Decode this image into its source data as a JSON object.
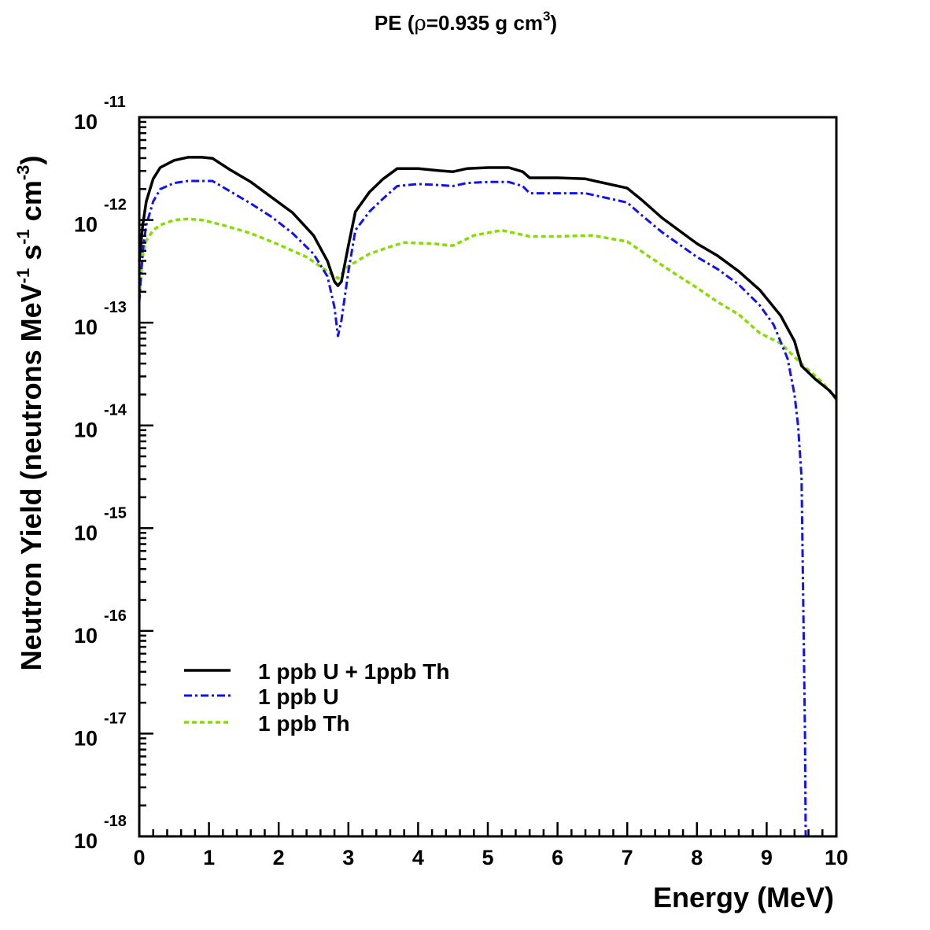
{
  "chart_data": {
    "type": "line",
    "title": {
      "main": "PE  (",
      "rho": "ρ",
      "after_rho": "=0.935 g cm",
      "sup": "3",
      "close": ")"
    },
    "xlabel": "Energy (MeV)",
    "ylabel": {
      "part1": "Neutron Yield (neutrons MeV",
      "sup1": "-1",
      "part2": " s",
      "sup2": "-1",
      "part3": " cm",
      "sup3": "-3",
      "part4": ")"
    },
    "x_scale": "linear",
    "y_scale": "log",
    "xlim": [
      0,
      10
    ],
    "ylim_log10": [
      -18,
      -11
    ],
    "x_ticks": [
      "0",
      "1",
      "2",
      "3",
      "4",
      "5",
      "6",
      "7",
      "8",
      "9",
      "10"
    ],
    "y_ticks": [
      {
        "base": "10",
        "exp": "-18"
      },
      {
        "base": "10",
        "exp": "-17"
      },
      {
        "base": "10",
        "exp": "-16"
      },
      {
        "base": "10",
        "exp": "-15"
      },
      {
        "base": "10",
        "exp": "-14"
      },
      {
        "base": "10",
        "exp": "-13"
      },
      {
        "base": "10",
        "exp": "-12"
      },
      {
        "base": "10",
        "exp": "-11"
      }
    ],
    "grid": false,
    "legend_position": "bottom-left",
    "series": [
      {
        "name": "1 ppb U + 1ppb Th",
        "color": "#000000",
        "style": "solid",
        "x": [
          0.0,
          0.05,
          0.1,
          0.2,
          0.3,
          0.5,
          0.7,
          0.9,
          1.05,
          1.3,
          1.6,
          1.9,
          2.2,
          2.5,
          2.7,
          2.8,
          2.85,
          2.9,
          3.0,
          3.1,
          3.3,
          3.5,
          3.7,
          4.0,
          4.3,
          4.5,
          4.7,
          5.0,
          5.3,
          5.5,
          5.6,
          6.0,
          6.4,
          6.8,
          7.0,
          7.2,
          7.5,
          8.0,
          8.3,
          8.6,
          8.9,
          9.2,
          9.4,
          9.5,
          9.7,
          9.9,
          10.0
        ],
        "log10_y": [
          -12.4,
          -12.05,
          -11.82,
          -11.6,
          -11.49,
          -11.42,
          -11.39,
          -11.39,
          -11.4,
          -11.51,
          -11.63,
          -11.78,
          -11.93,
          -12.15,
          -12.4,
          -12.6,
          -12.64,
          -12.6,
          -12.25,
          -11.92,
          -11.73,
          -11.6,
          -11.5,
          -11.5,
          -11.52,
          -11.53,
          -11.5,
          -11.49,
          -11.49,
          -11.53,
          -11.59,
          -11.59,
          -11.6,
          -11.66,
          -11.69,
          -11.8,
          -11.98,
          -12.23,
          -12.35,
          -12.5,
          -12.68,
          -12.93,
          -13.18,
          -13.42,
          -13.55,
          -13.66,
          -13.74
        ]
      },
      {
        "name": "1 ppb U",
        "color": "#1010ff",
        "style": "dash-dot",
        "x": [
          0.0,
          0.05,
          0.1,
          0.2,
          0.3,
          0.5,
          0.7,
          0.9,
          1.05,
          1.3,
          1.6,
          1.9,
          2.2,
          2.5,
          2.7,
          2.8,
          2.85,
          2.9,
          3.0,
          3.1,
          3.3,
          3.5,
          3.7,
          4.0,
          4.3,
          4.5,
          4.7,
          5.0,
          5.3,
          5.5,
          5.6,
          6.0,
          6.4,
          6.8,
          7.0,
          7.2,
          7.5,
          8.0,
          8.3,
          8.6,
          8.9,
          9.1,
          9.3,
          9.4,
          9.45,
          9.5,
          9.52,
          9.55,
          9.56
        ],
        "log10_y": [
          -12.8,
          -12.3,
          -12.05,
          -11.82,
          -11.7,
          -11.64,
          -11.62,
          -11.62,
          -11.62,
          -11.72,
          -11.84,
          -11.97,
          -12.13,
          -12.33,
          -12.55,
          -12.85,
          -13.13,
          -12.98,
          -12.5,
          -12.1,
          -11.92,
          -11.79,
          -11.67,
          -11.65,
          -11.66,
          -11.67,
          -11.64,
          -11.63,
          -11.63,
          -11.67,
          -11.74,
          -11.74,
          -11.74,
          -11.8,
          -11.83,
          -11.95,
          -12.12,
          -12.36,
          -12.48,
          -12.63,
          -12.83,
          -13.02,
          -13.35,
          -13.7,
          -14.0,
          -14.5,
          -15.5,
          -17.0,
          -18.0
        ]
      },
      {
        "name": "1 ppb Th",
        "color": "#88dd00",
        "style": "dashed",
        "x": [
          0.0,
          0.05,
          0.1,
          0.2,
          0.3,
          0.5,
          0.7,
          0.9,
          1.2,
          1.6,
          2.0,
          2.4,
          2.7,
          2.85,
          3.0,
          3.3,
          3.6,
          3.8,
          4.2,
          4.5,
          4.8,
          5.2,
          5.6,
          6.0,
          6.5,
          7.0,
          7.3,
          7.7,
          8.0,
          8.3,
          8.6,
          8.9,
          9.2,
          9.5,
          9.8,
          10.0
        ],
        "log10_y": [
          -12.75,
          -12.35,
          -12.2,
          -12.1,
          -12.05,
          -12.0,
          -11.99,
          -12.0,
          -12.05,
          -12.13,
          -12.24,
          -12.36,
          -12.5,
          -12.57,
          -12.45,
          -12.33,
          -12.26,
          -12.22,
          -12.23,
          -12.25,
          -12.15,
          -12.1,
          -12.16,
          -12.16,
          -12.15,
          -12.21,
          -12.35,
          -12.53,
          -12.66,
          -12.8,
          -12.92,
          -13.1,
          -13.2,
          -13.4,
          -13.58,
          -13.75
        ]
      }
    ]
  }
}
